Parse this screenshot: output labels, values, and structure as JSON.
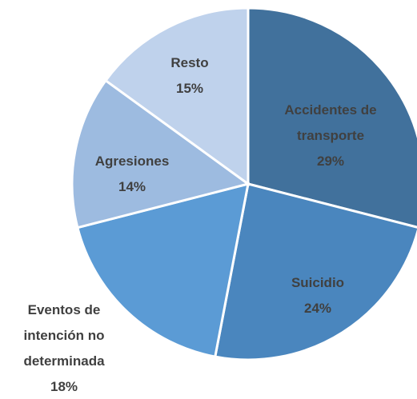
{
  "chart_data": {
    "type": "pie",
    "categories": [
      "Accidentes de transporte",
      "Suicidio",
      "Eventos de intención no determinada",
      "Agresiones",
      "Resto"
    ],
    "values": [
      29,
      24,
      18,
      14,
      15
    ],
    "value_labels": [
      "29%",
      "24%",
      "18%",
      "14%",
      "15%"
    ],
    "colors": [
      "#41719c",
      "#4a86be",
      "#5b9bd5",
      "#9dbbe0",
      "#bfd2ec"
    ]
  }
}
